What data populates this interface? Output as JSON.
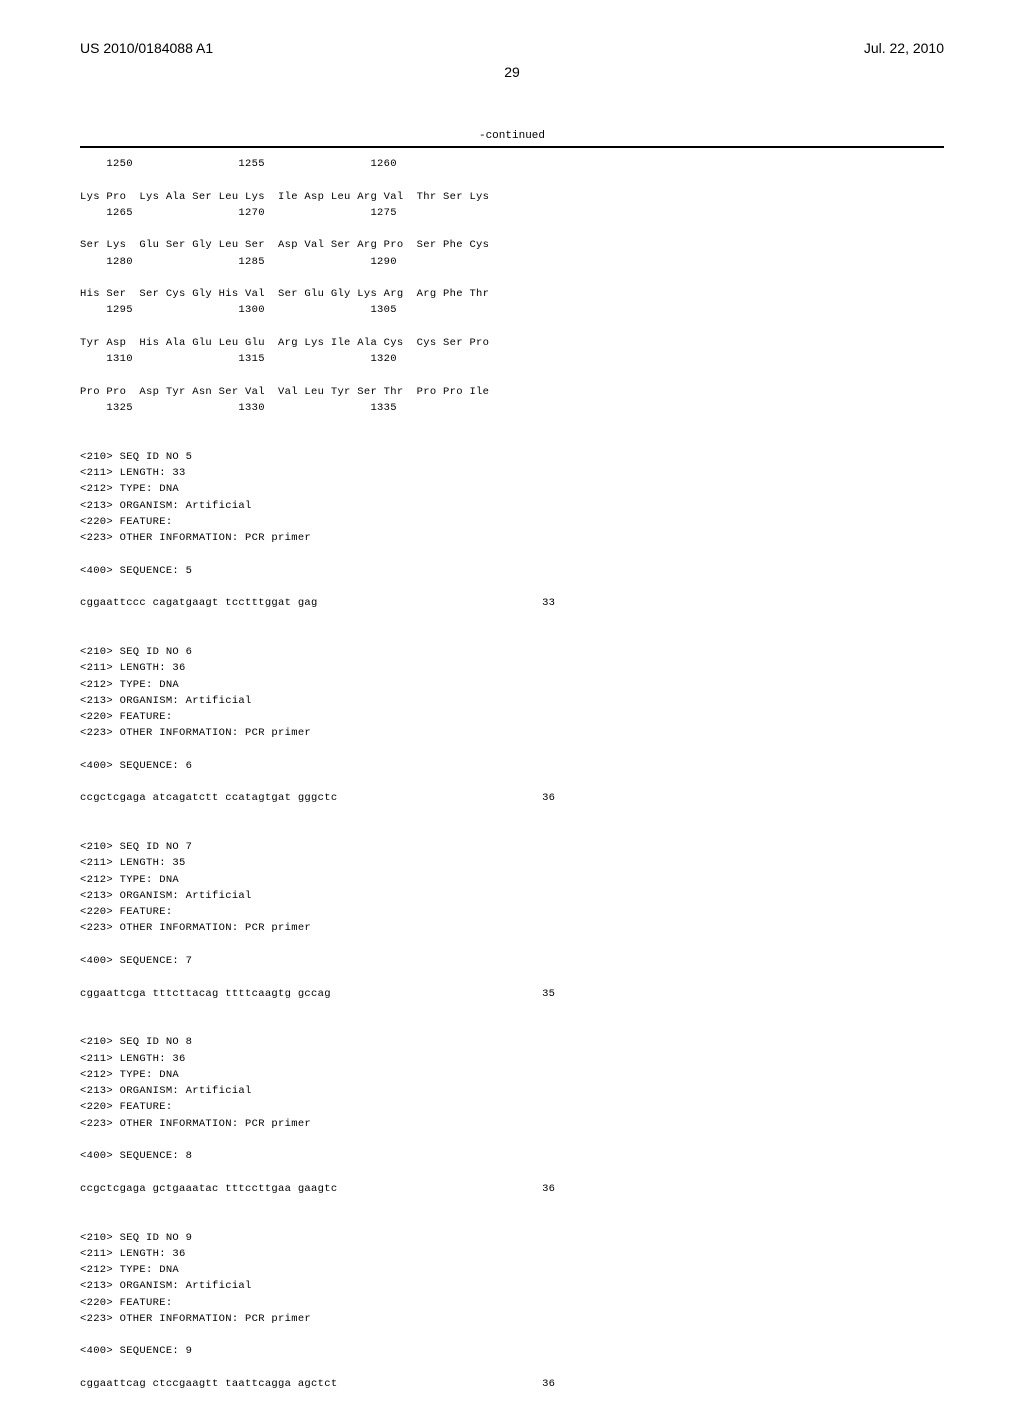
{
  "header": {
    "docNumber": "US 2010/0184088 A1",
    "date": "Jul. 22, 2010",
    "pageNum": "29"
  },
  "continued": "-continued",
  "proteinSeq": {
    "rows": [
      {
        "pos": [
          "    1250",
          "                1255",
          "                1260"
        ],
        "aa": ""
      },
      {
        "aa": "Lys Pro  Lys Ala Ser Leu Lys  Ile Asp Leu Arg Val  Thr Ser Lys",
        "pos": [
          "    1265",
          "                1270",
          "                1275"
        ]
      },
      {
        "aa": "Ser Lys  Glu Ser Gly Leu Ser  Asp Val Ser Arg Pro  Ser Phe Cys",
        "pos": [
          "    1280",
          "                1285",
          "                1290"
        ]
      },
      {
        "aa": "His Ser  Ser Cys Gly His Val  Ser Glu Gly Lys Arg  Arg Phe Thr",
        "pos": [
          "    1295",
          "                1300",
          "                1305"
        ]
      },
      {
        "aa": "Tyr Asp  His Ala Glu Leu Glu  Arg Lys Ile Ala Cys  Cys Ser Pro",
        "pos": [
          "    1310",
          "                1315",
          "                1320"
        ]
      },
      {
        "aa": "Pro Pro  Asp Tyr Asn Ser Val  Val Leu Tyr Ser Thr  Pro Pro Ile",
        "pos": [
          "    1325",
          "                1330",
          "                1335"
        ]
      }
    ]
  },
  "seqs": [
    {
      "meta": [
        "<210> SEQ ID NO 5",
        "<211> LENGTH: 33",
        "<212> TYPE: DNA",
        "<213> ORGANISM: Artificial",
        "<220> FEATURE:",
        "<223> OTHER INFORMATION: PCR primer"
      ],
      "seq400": "<400> SEQUENCE: 5",
      "seq": "cggaattccc cagatgaagt tcctttggat gag",
      "len": "33"
    },
    {
      "meta": [
        "<210> SEQ ID NO 6",
        "<211> LENGTH: 36",
        "<212> TYPE: DNA",
        "<213> ORGANISM: Artificial",
        "<220> FEATURE:",
        "<223> OTHER INFORMATION: PCR primer"
      ],
      "seq400": "<400> SEQUENCE: 6",
      "seq": "ccgctcgaga atcagatctt ccatagtgat gggctc",
      "len": "36"
    },
    {
      "meta": [
        "<210> SEQ ID NO 7",
        "<211> LENGTH: 35",
        "<212> TYPE: DNA",
        "<213> ORGANISM: Artificial",
        "<220> FEATURE:",
        "<223> OTHER INFORMATION: PCR primer"
      ],
      "seq400": "<400> SEQUENCE: 7",
      "seq": "cggaattcga tttcttacag ttttcaagtg gccag",
      "len": "35"
    },
    {
      "meta": [
        "<210> SEQ ID NO 8",
        "<211> LENGTH: 36",
        "<212> TYPE: DNA",
        "<213> ORGANISM: Artificial",
        "<220> FEATURE:",
        "<223> OTHER INFORMATION: PCR primer"
      ],
      "seq400": "<400> SEQUENCE: 8",
      "seq": "ccgctcgaga gctgaaatac tttccttgaa gaagtc",
      "len": "36"
    },
    {
      "meta": [
        "<210> SEQ ID NO 9",
        "<211> LENGTH: 36",
        "<212> TYPE: DNA",
        "<213> ORGANISM: Artificial",
        "<220> FEATURE:",
        "<223> OTHER INFORMATION: PCR primer"
      ],
      "seq400": "<400> SEQUENCE: 9",
      "seq": "cggaattcag ctccgaagtt taattcagga agctct",
      "len": "36"
    }
  ]
}
